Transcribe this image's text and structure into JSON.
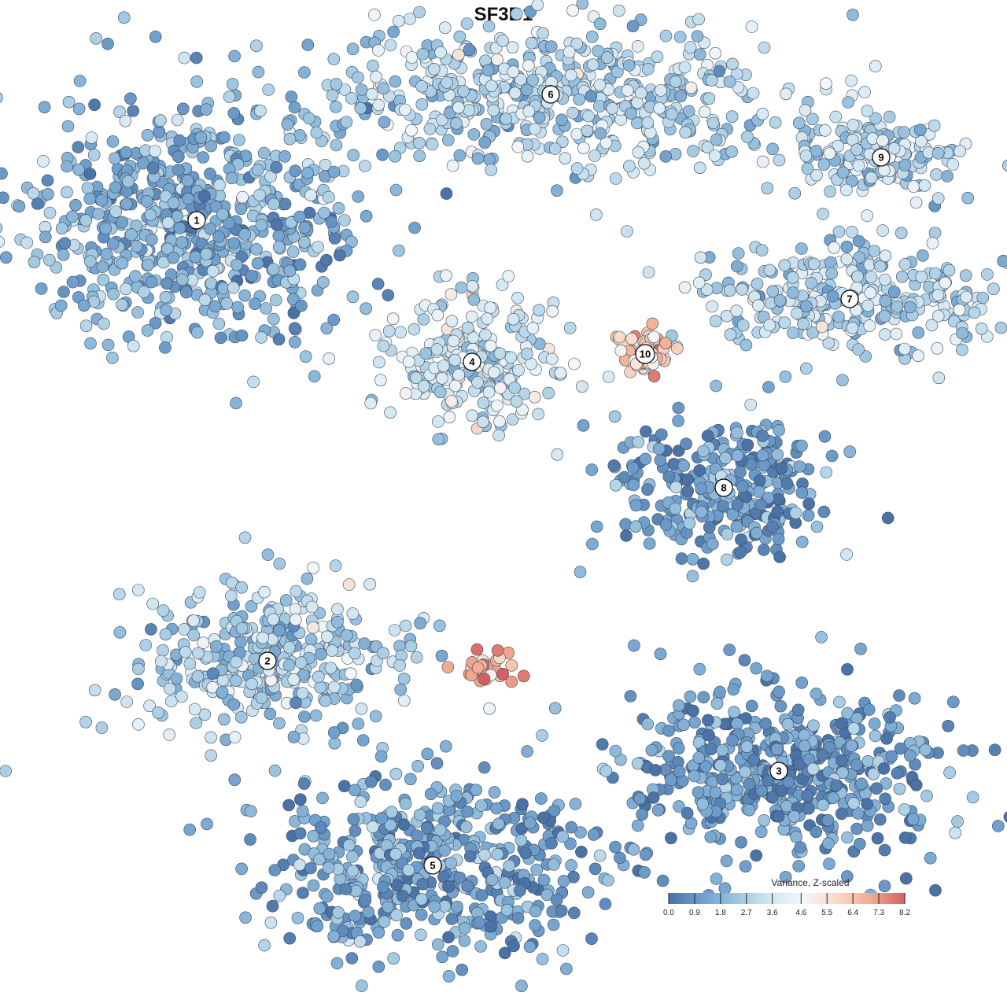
{
  "chart_data": {
    "type": "scatter",
    "title": "SF3B1",
    "xlabel": "",
    "ylabel": "",
    "grid": false,
    "color_scale": {
      "title": "Variance, Z-scaled",
      "min": 0.0,
      "max": 8.2,
      "ticks": [
        "0.0",
        "0.9",
        "1.8",
        "2.7",
        "3.6",
        "4.6",
        "5.5",
        "6.4",
        "7.3",
        "8.2"
      ],
      "colors": [
        "#4a72a6",
        "#6f9fcd",
        "#9cc5e0",
        "#d2e6f1",
        "#f4f6f8",
        "#f9d9c8",
        "#f0aa8f",
        "#d75f63"
      ],
      "placement": "bottom-right"
    },
    "clusters": [
      {
        "label": "1",
        "x": -3.9,
        "y": 3.6,
        "spread_x": 2.1,
        "spread_y": 1.6,
        "mean_value": 1.8
      },
      {
        "label": "2",
        "x": -3.0,
        "y": -2.0,
        "spread_x": 1.7,
        "spread_y": 1.0,
        "mean_value": 2.8
      },
      {
        "label": "3",
        "x": 3.5,
        "y": -3.4,
        "spread_x": 2.1,
        "spread_y": 1.2,
        "mean_value": 1.1
      },
      {
        "label": "4",
        "x": -0.4,
        "y": 1.8,
        "spread_x": 1.1,
        "spread_y": 0.9,
        "mean_value": 3.6
      },
      {
        "label": "5",
        "x": -0.9,
        "y": -4.6,
        "spread_x": 2.2,
        "spread_y": 1.1,
        "mean_value": 1.4
      },
      {
        "label": "6",
        "x": 0.6,
        "y": 5.2,
        "spread_x": 3.0,
        "spread_y": 0.9,
        "mean_value": 3.0
      },
      {
        "label": "7",
        "x": 4.4,
        "y": 2.6,
        "spread_x": 1.9,
        "spread_y": 0.7,
        "mean_value": 2.9
      },
      {
        "label": "8",
        "x": 2.8,
        "y": 0.2,
        "spread_x": 1.4,
        "spread_y": 0.9,
        "mean_value": 1.2
      },
      {
        "label": "9",
        "x": 4.8,
        "y": 4.4,
        "spread_x": 1.1,
        "spread_y": 0.5,
        "mean_value": 2.9
      },
      {
        "label": "10",
        "x": 1.8,
        "y": 1.9,
        "spread_x": 0.3,
        "spread_y": 0.3,
        "mean_value": 6.0
      }
    ],
    "hotspot": {
      "x": -0.2,
      "y": -2.1,
      "spread_x": 0.4,
      "spread_y": 0.2,
      "mean_value": 7.0
    }
  }
}
